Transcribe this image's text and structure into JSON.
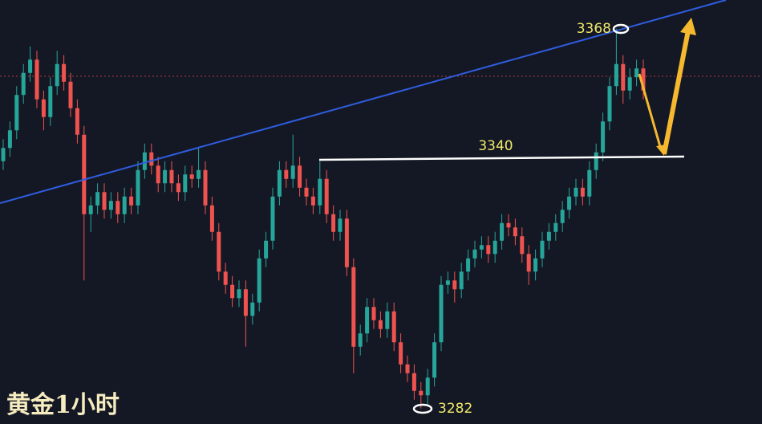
{
  "chart_data": {
    "type": "candlestick",
    "title": "黄金1小时",
    "ylim": [
      3278.5,
      3374.5
    ],
    "up_color": "#26a69a",
    "down_color": "#ef5350",
    "labels": [
      3368,
      3340,
      3282
    ],
    "candles": [
      [
        3338,
        3343,
        3336,
        3341
      ],
      [
        3341,
        3347,
        3339,
        3345
      ],
      [
        3345,
        3355,
        3343,
        3353
      ],
      [
        3353,
        3360,
        3351,
        3358
      ],
      [
        3358,
        3364,
        3356,
        3361
      ],
      [
        3361,
        3363,
        3350,
        3352
      ],
      [
        3352,
        3354,
        3345,
        3348
      ],
      [
        3348,
        3357,
        3346,
        3355
      ],
      [
        3355,
        3363,
        3353,
        3360
      ],
      [
        3360,
        3362,
        3354,
        3356
      ],
      [
        3356,
        3358,
        3348,
        3350
      ],
      [
        3350,
        3352,
        3342,
        3344
      ],
      [
        3344,
        3346,
        3311,
        3326
      ],
      [
        3326,
        3330,
        3322,
        3328
      ],
      [
        3328,
        3333,
        3326,
        3331
      ],
      [
        3331,
        3333,
        3325,
        3327
      ],
      [
        3327,
        3331,
        3325,
        3329
      ],
      [
        3329,
        3331,
        3324,
        3326
      ],
      [
        3326,
        3332,
        3324,
        3330
      ],
      [
        3330,
        3332,
        3326,
        3328
      ],
      [
        3328,
        3338,
        3326,
        3336
      ],
      [
        3336,
        3342,
        3334,
        3340
      ],
      [
        3340,
        3342,
        3335,
        3337
      ],
      [
        3337,
        3339,
        3331,
        3333
      ],
      [
        3333,
        3338,
        3331,
        3336
      ],
      [
        3336,
        3338,
        3331,
        3333
      ],
      [
        3333,
        3335,
        3329,
        3331
      ],
      [
        3331,
        3337,
        3329,
        3335
      ],
      [
        3335,
        3337,
        3332,
        3334
      ],
      [
        3334,
        3341,
        3332,
        3336
      ],
      [
        3336,
        3338,
        3326,
        3328
      ],
      [
        3328,
        3330,
        3320,
        3322
      ],
      [
        3322,
        3324,
        3311,
        3313
      ],
      [
        3313,
        3315,
        3308,
        3310
      ],
      [
        3310,
        3312,
        3305,
        3307
      ],
      [
        3307,
        3311,
        3305,
        3309
      ],
      [
        3309,
        3311,
        3296,
        3303
      ],
      [
        3303,
        3308,
        3301,
        3306
      ],
      [
        3306,
        3318,
        3304,
        3316
      ],
      [
        3316,
        3322,
        3314,
        3320
      ],
      [
        3320,
        3332,
        3318,
        3330
      ],
      [
        3330,
        3338,
        3328,
        3336
      ],
      [
        3336,
        3338,
        3332,
        3334
      ],
      [
        3334,
        3344,
        3332,
        3337
      ],
      [
        3337,
        3339,
        3330,
        3332
      ],
      [
        3332,
        3334,
        3328,
        3330
      ],
      [
        3330,
        3332,
        3326,
        3328
      ],
      [
        3328,
        3338,
        3326,
        3334
      ],
      [
        3334,
        3336,
        3324,
        3326
      ],
      [
        3326,
        3328,
        3320,
        3322
      ],
      [
        3322,
        3327,
        3320,
        3325
      ],
      [
        3325,
        3327,
        3312,
        3314
      ],
      [
        3314,
        3316,
        3290,
        3296
      ],
      [
        3296,
        3301,
        3294,
        3299
      ],
      [
        3299,
        3307,
        3297,
        3305
      ],
      [
        3305,
        3307,
        3300,
        3302
      ],
      [
        3302,
        3304,
        3298,
        3300
      ],
      [
        3300,
        3306,
        3298,
        3304
      ],
      [
        3304,
        3306,
        3295,
        3297
      ],
      [
        3297,
        3299,
        3290,
        3292
      ],
      [
        3292,
        3294,
        3288,
        3290
      ],
      [
        3290,
        3292,
        3284,
        3286
      ],
      [
        3286,
        3288,
        3282,
        3285
      ],
      [
        3285,
        3291,
        3283,
        3289
      ],
      [
        3289,
        3299,
        3287,
        3297
      ],
      [
        3297,
        3312,
        3295,
        3310
      ],
      [
        3310,
        3313,
        3308,
        3311
      ],
      [
        3311,
        3313,
        3306,
        3309
      ],
      [
        3309,
        3315,
        3307,
        3313
      ],
      [
        3313,
        3318,
        3311,
        3316
      ],
      [
        3316,
        3320,
        3314,
        3318
      ],
      [
        3318,
        3321,
        3316,
        3319
      ],
      [
        3319,
        3321,
        3315,
        3317
      ],
      [
        3317,
        3322,
        3315,
        3320
      ],
      [
        3320,
        3326,
        3318,
        3324
      ],
      [
        3324,
        3326,
        3321,
        3323
      ],
      [
        3323,
        3325,
        3319,
        3321
      ],
      [
        3321,
        3323,
        3315,
        3317
      ],
      [
        3317,
        3319,
        3310,
        3313
      ],
      [
        3313,
        3318,
        3311,
        3316
      ],
      [
        3316,
        3322,
        3314,
        3320
      ],
      [
        3320,
        3324,
        3318,
        3322
      ],
      [
        3322,
        3326,
        3320,
        3324
      ],
      [
        3324,
        3329,
        3322,
        3327
      ],
      [
        3327,
        3332,
        3325,
        3330
      ],
      [
        3330,
        3334,
        3328,
        3332
      ],
      [
        3332,
        3334,
        3328,
        3330
      ],
      [
        3330,
        3338,
        3328,
        3336
      ],
      [
        3336,
        3342,
        3334,
        3340
      ],
      [
        3340,
        3349,
        3338,
        3347
      ],
      [
        3347,
        3357,
        3345,
        3355
      ],
      [
        3355,
        3368,
        3353,
        3360
      ],
      [
        3360,
        3362,
        3351,
        3354
      ],
      [
        3354,
        3359,
        3352,
        3357
      ],
      [
        3357,
        3361,
        3355,
        3359
      ],
      [
        3359,
        3361,
        3352,
        3354
      ]
    ]
  }
}
